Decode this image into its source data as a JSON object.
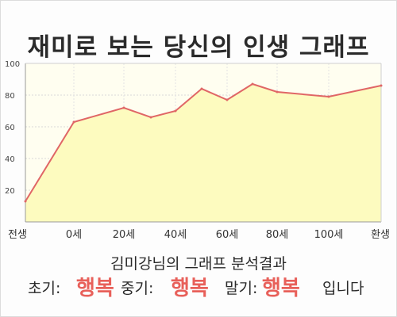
{
  "title": "재미로 보는 당신의 인생 그래프",
  "chart_data": {
    "type": "area",
    "title": "재미로 보는 당신의 인생 그래프",
    "xlabel": "",
    "ylabel": "",
    "x_ticks": [
      "전생",
      "0세",
      "20세",
      "40세",
      "60세",
      "80세",
      "100세",
      "환생"
    ],
    "y_ticks": [
      "20",
      "40",
      "60",
      "80",
      "100"
    ],
    "ylim": [
      0,
      100
    ],
    "points": [
      {
        "x": "전생",
        "y": 13
      },
      {
        "x": "0세",
        "y": 63
      },
      {
        "x": "20세",
        "y": 72
      },
      {
        "x": "30세",
        "y": 66
      },
      {
        "x": "40세",
        "y": 70
      },
      {
        "x": "50세",
        "y": 84
      },
      {
        "x": "60세",
        "y": 77
      },
      {
        "x": "70세",
        "y": 87
      },
      {
        "x": "80세",
        "y": 82
      },
      {
        "x": "100세",
        "y": 79
      },
      {
        "x": "환생",
        "y": 86
      }
    ],
    "grid": true,
    "line_color": "#e06666",
    "fill_color": "#fdfbbf"
  },
  "result": {
    "line1": "김미강님의 그래프 분석결과",
    "early_label": "초기:",
    "early_value": "행복",
    "middle_label": "중기:",
    "middle_value": "행복",
    "late_label": "말기:",
    "late_value": "행복",
    "ending": "입니다"
  }
}
